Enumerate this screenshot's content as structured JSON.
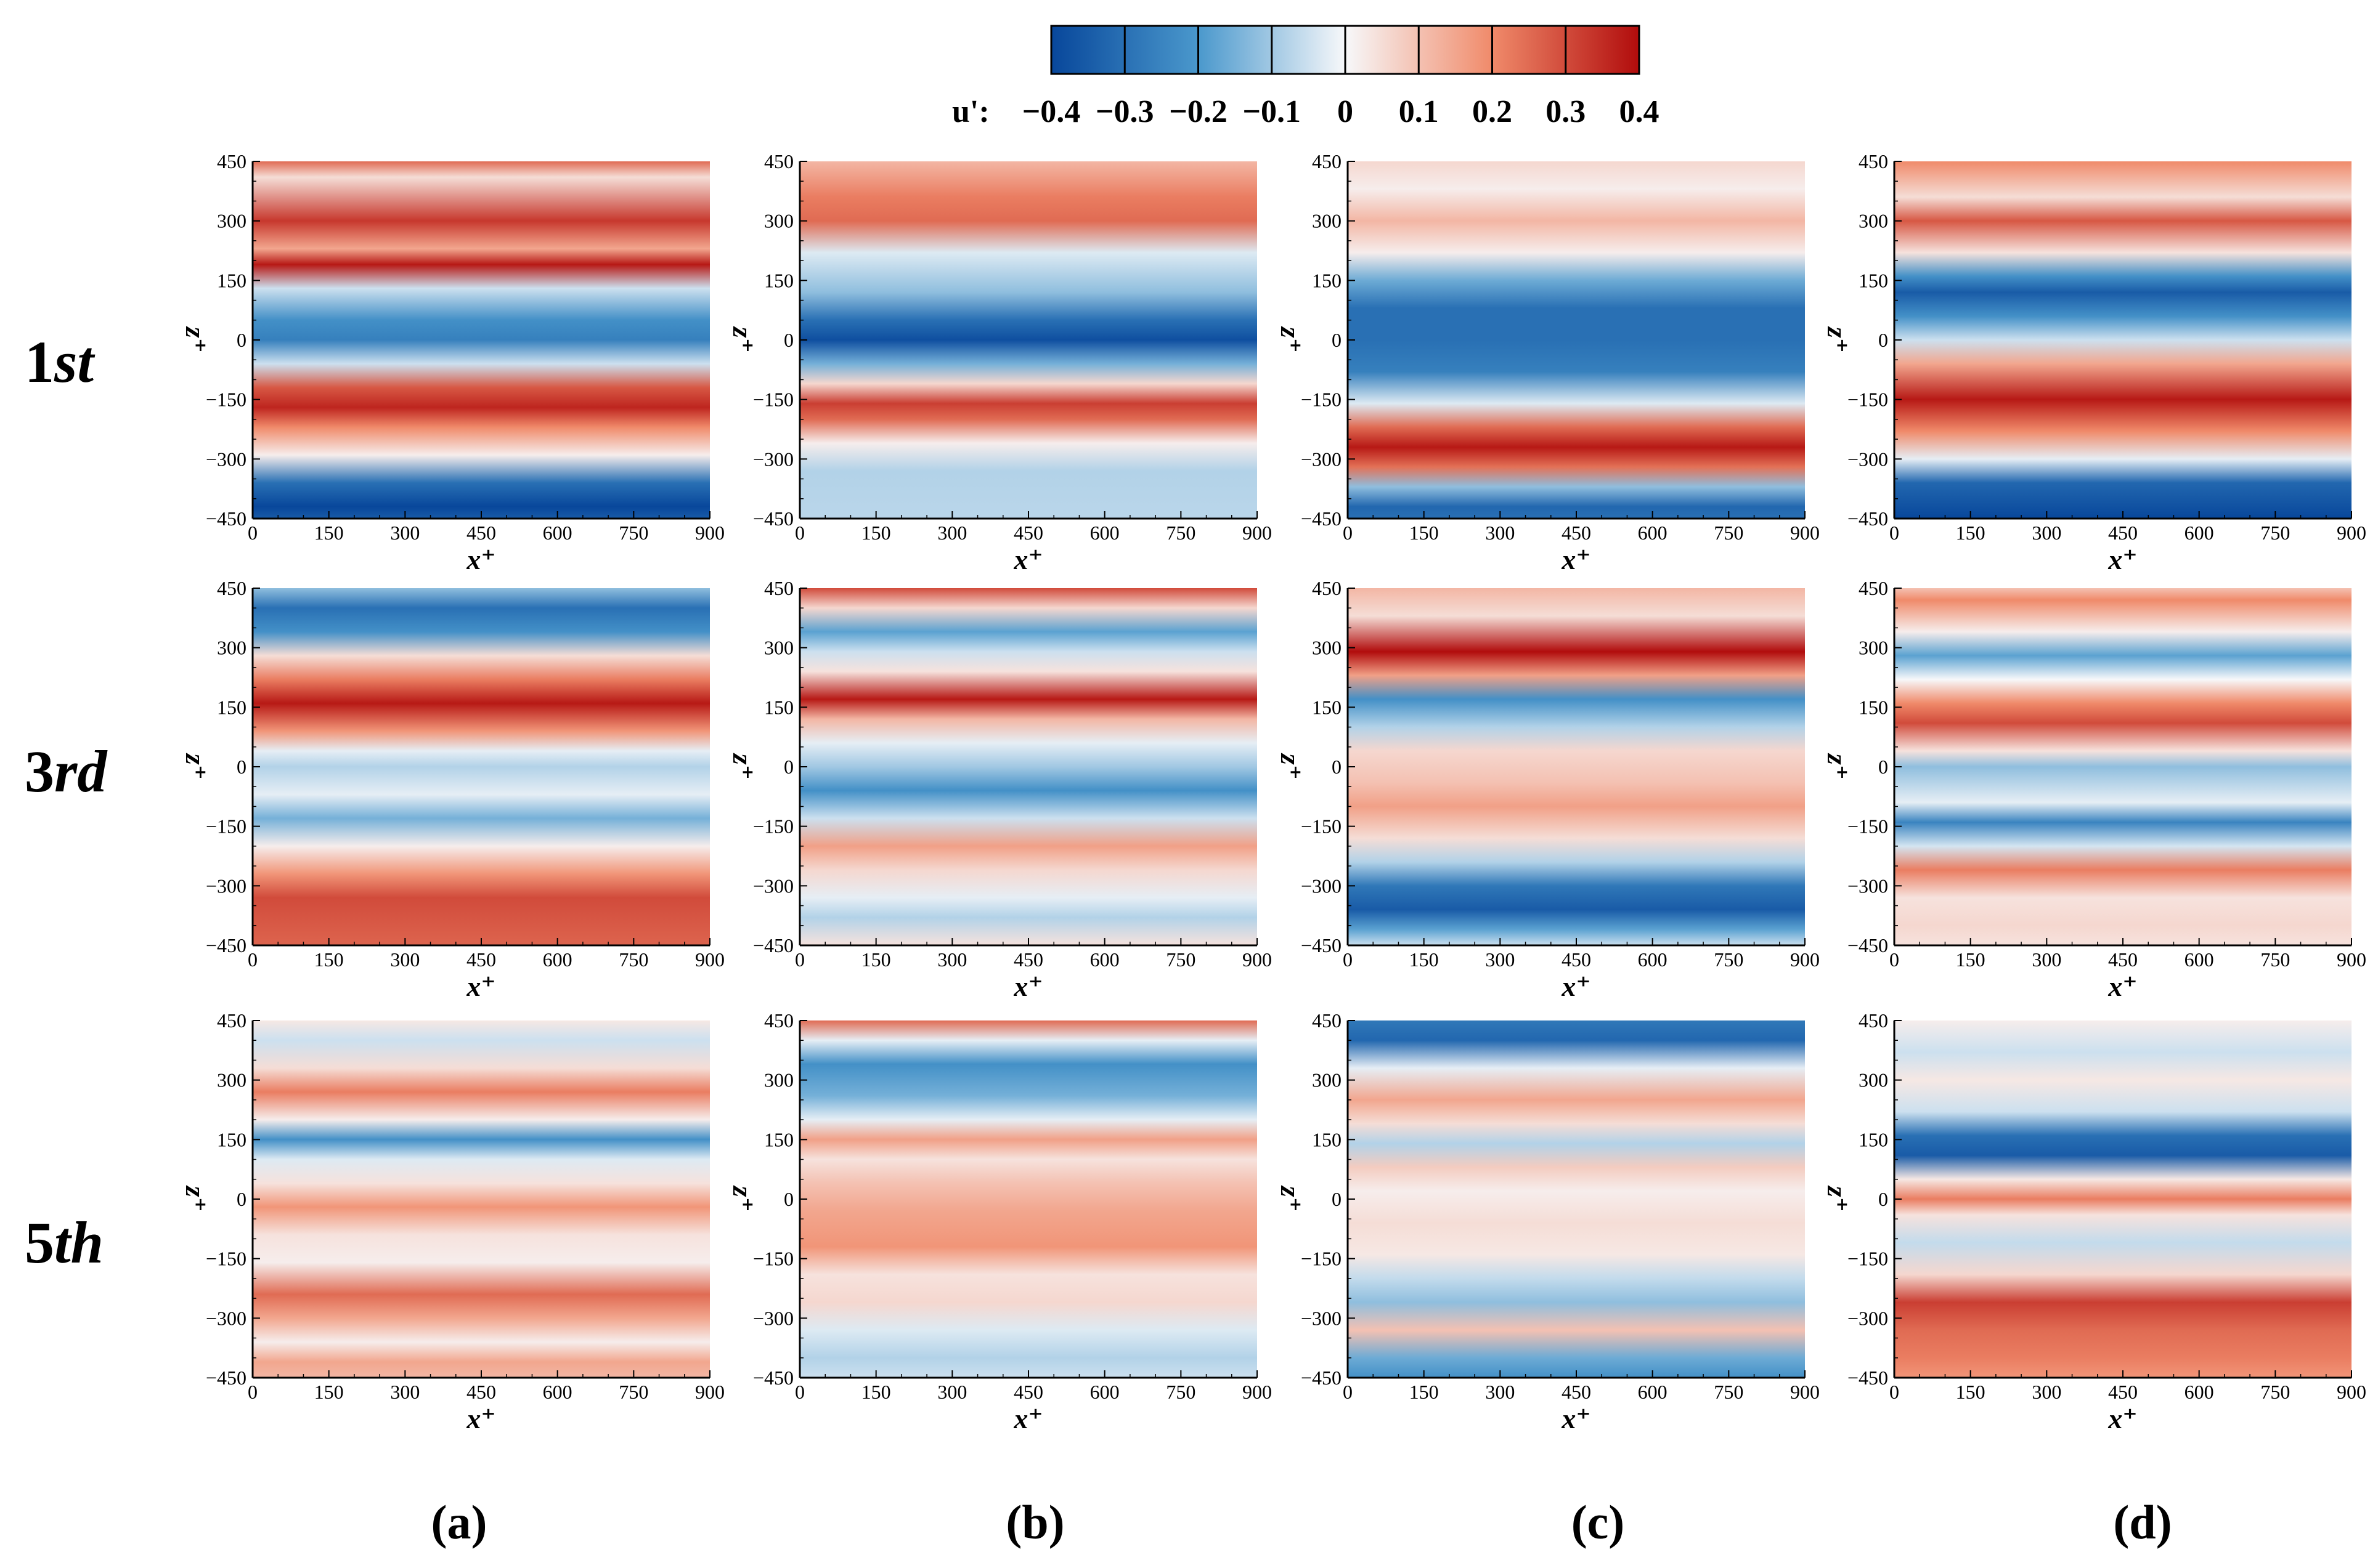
{
  "chart_data": {
    "type": "heatmap",
    "variable": "u'",
    "colorbar": {
      "label": "u':",
      "ticks": [
        "−0.4",
        "−0.3",
        "−0.2",
        "−0.1",
        "0",
        "0.1",
        "0.2",
        "0.3",
        "0.4"
      ],
      "range": [
        -0.4,
        0.4
      ],
      "colors": {
        "neg_max": "#08479b",
        "neg_mid": "#4a98cc",
        "zero": "#f7f8fa",
        "pos_mid": "#f08a6a",
        "pos_max": "#b10c0c"
      }
    },
    "xlabel": "x⁺",
    "ylabel": "z⁺",
    "xticks": [
      "0",
      "150",
      "300",
      "450",
      "600",
      "750",
      "900"
    ],
    "yticks": [
      "450",
      "300",
      "150",
      "0",
      "-150",
      "-300",
      "-450"
    ],
    "xlim": [
      0,
      900
    ],
    "ylim": [
      -450,
      450
    ],
    "rows": [
      "1st",
      "3rd",
      "5th"
    ],
    "columns": [
      "(a)",
      "(b)",
      "(c)",
      "(d)"
    ],
    "panels": [
      {
        "row": 0,
        "col": 0,
        "bands": [
          [
            450,
            0.25
          ],
          [
            410,
            0.05
          ],
          [
            300,
            0.33
          ],
          [
            230,
            0.15
          ],
          [
            190,
            0.38
          ],
          [
            130,
            -0.05
          ],
          [
            50,
            -0.22
          ],
          [
            0,
            -0.26
          ],
          [
            -60,
            -0.05
          ],
          [
            -120,
            0.28
          ],
          [
            -170,
            0.36
          ],
          [
            -220,
            0.2
          ],
          [
            -290,
            0.02
          ],
          [
            -360,
            -0.3
          ],
          [
            -420,
            -0.4
          ],
          [
            -450,
            -0.35
          ]
        ]
      },
      {
        "row": 0,
        "col": 1,
        "bands": [
          [
            450,
            0.12
          ],
          [
            360,
            0.22
          ],
          [
            300,
            0.25
          ],
          [
            220,
            -0.03
          ],
          [
            120,
            -0.12
          ],
          [
            50,
            -0.3
          ],
          [
            0,
            -0.38
          ],
          [
            -60,
            -0.15
          ],
          [
            -110,
            0.06
          ],
          [
            -160,
            0.32
          ],
          [
            -200,
            0.25
          ],
          [
            -260,
            0.02
          ],
          [
            -330,
            -0.08
          ],
          [
            -450,
            -0.07
          ]
        ]
      },
      {
        "row": 0,
        "col": 2,
        "bands": [
          [
            450,
            0.06
          ],
          [
            380,
            0.02
          ],
          [
            300,
            0.12
          ],
          [
            220,
            0.02
          ],
          [
            150,
            -0.16
          ],
          [
            80,
            -0.3
          ],
          [
            0,
            -0.3
          ],
          [
            -80,
            -0.26
          ],
          [
            -160,
            -0.03
          ],
          [
            -220,
            0.25
          ],
          [
            -270,
            0.38
          ],
          [
            -320,
            0.24
          ],
          [
            -370,
            -0.12
          ],
          [
            -420,
            -0.32
          ],
          [
            -450,
            -0.3
          ]
        ]
      },
      {
        "row": 0,
        "col": 3,
        "bands": [
          [
            450,
            0.2
          ],
          [
            360,
            0.05
          ],
          [
            300,
            0.28
          ],
          [
            220,
            0.04
          ],
          [
            160,
            -0.22
          ],
          [
            120,
            -0.35
          ],
          [
            60,
            -0.22
          ],
          [
            0,
            -0.05
          ],
          [
            -60,
            0.15
          ],
          [
            -150,
            0.38
          ],
          [
            -230,
            0.2
          ],
          [
            -300,
            -0.02
          ],
          [
            -360,
            -0.32
          ],
          [
            -450,
            -0.4
          ]
        ]
      },
      {
        "row": 1,
        "col": 0,
        "bands": [
          [
            450,
            -0.12
          ],
          [
            400,
            -0.3
          ],
          [
            340,
            -0.22
          ],
          [
            280,
            0.05
          ],
          [
            220,
            0.22
          ],
          [
            160,
            0.38
          ],
          [
            90,
            0.18
          ],
          [
            40,
            -0.02
          ],
          [
            0,
            -0.08
          ],
          [
            -70,
            -0.02
          ],
          [
            -130,
            -0.15
          ],
          [
            -200,
            0.02
          ],
          [
            -270,
            0.18
          ],
          [
            -330,
            0.3
          ],
          [
            -450,
            0.26
          ]
        ]
      },
      {
        "row": 1,
        "col": 1,
        "bands": [
          [
            450,
            0.3
          ],
          [
            400,
            0.06
          ],
          [
            340,
            -0.18
          ],
          [
            290,
            -0.05
          ],
          [
            240,
            0.04
          ],
          [
            170,
            0.38
          ],
          [
            120,
            0.12
          ],
          [
            60,
            -0.02
          ],
          [
            0,
            -0.1
          ],
          [
            -60,
            -0.22
          ],
          [
            -130,
            -0.05
          ],
          [
            -200,
            0.16
          ],
          [
            -260,
            0.06
          ],
          [
            -330,
            -0.02
          ],
          [
            -380,
            -0.08
          ],
          [
            -450,
            0.04
          ]
        ]
      },
      {
        "row": 1,
        "col": 2,
        "bands": [
          [
            450,
            0.12
          ],
          [
            380,
            0.05
          ],
          [
            290,
            0.4
          ],
          [
            230,
            0.16
          ],
          [
            170,
            -0.22
          ],
          [
            100,
            -0.08
          ],
          [
            40,
            0.06
          ],
          [
            -40,
            0.1
          ],
          [
            -100,
            0.16
          ],
          [
            -180,
            0.05
          ],
          [
            -240,
            -0.08
          ],
          [
            -300,
            -0.28
          ],
          [
            -360,
            -0.35
          ],
          [
            -410,
            -0.18
          ],
          [
            -450,
            -0.05
          ]
        ]
      },
      {
        "row": 1,
        "col": 3,
        "bands": [
          [
            450,
            0.1
          ],
          [
            420,
            0.2
          ],
          [
            340,
            0.02
          ],
          [
            280,
            -0.18
          ],
          [
            220,
            0.0
          ],
          [
            160,
            0.2
          ],
          [
            110,
            0.3
          ],
          [
            40,
            0.04
          ],
          [
            0,
            -0.12
          ],
          [
            -90,
            -0.02
          ],
          [
            -140,
            -0.25
          ],
          [
            -200,
            -0.04
          ],
          [
            -260,
            0.22
          ],
          [
            -330,
            0.04
          ],
          [
            -400,
            0.06
          ],
          [
            -450,
            0.04
          ]
        ]
      },
      {
        "row": 2,
        "col": 0,
        "bands": [
          [
            450,
            0.03
          ],
          [
            400,
            -0.05
          ],
          [
            330,
            0.05
          ],
          [
            270,
            0.22
          ],
          [
            200,
            0.02
          ],
          [
            150,
            -0.22
          ],
          [
            100,
            -0.03
          ],
          [
            40,
            0.04
          ],
          [
            -20,
            0.18
          ],
          [
            -90,
            0.04
          ],
          [
            -160,
            0.02
          ],
          [
            -240,
            0.25
          ],
          [
            -300,
            0.15
          ],
          [
            -360,
            0.02
          ],
          [
            -410,
            0.15
          ],
          [
            -450,
            0.12
          ]
        ]
      },
      {
        "row": 2,
        "col": 1,
        "bands": [
          [
            450,
            0.25
          ],
          [
            400,
            -0.02
          ],
          [
            340,
            -0.22
          ],
          [
            260,
            -0.15
          ],
          [
            200,
            -0.02
          ],
          [
            150,
            0.16
          ],
          [
            100,
            0.04
          ],
          [
            40,
            0.1
          ],
          [
            -30,
            0.15
          ],
          [
            -120,
            0.18
          ],
          [
            -190,
            0.04
          ],
          [
            -260,
            0.06
          ],
          [
            -330,
            -0.03
          ],
          [
            -400,
            -0.08
          ],
          [
            -450,
            -0.05
          ]
        ]
      },
      {
        "row": 2,
        "col": 2,
        "bands": [
          [
            450,
            -0.28
          ],
          [
            400,
            -0.32
          ],
          [
            330,
            -0.02
          ],
          [
            250,
            0.15
          ],
          [
            190,
            0.05
          ],
          [
            140,
            -0.08
          ],
          [
            80,
            0.08
          ],
          [
            20,
            0.02
          ],
          [
            -60,
            0.05
          ],
          [
            -140,
            0.03
          ],
          [
            -200,
            -0.06
          ],
          [
            -260,
            -0.12
          ],
          [
            -330,
            0.1
          ],
          [
            -400,
            -0.16
          ],
          [
            -450,
            -0.22
          ]
        ]
      },
      {
        "row": 2,
        "col": 3,
        "bands": [
          [
            450,
            0.02
          ],
          [
            370,
            -0.05
          ],
          [
            300,
            0.03
          ],
          [
            220,
            -0.05
          ],
          [
            160,
            -0.3
          ],
          [
            110,
            -0.35
          ],
          [
            50,
            0.03
          ],
          [
            0,
            0.22
          ],
          [
            -40,
            0.04
          ],
          [
            -110,
            -0.06
          ],
          [
            -190,
            0.06
          ],
          [
            -260,
            0.32
          ],
          [
            -330,
            0.25
          ],
          [
            -400,
            0.22
          ],
          [
            -450,
            0.18
          ]
        ]
      }
    ]
  }
}
